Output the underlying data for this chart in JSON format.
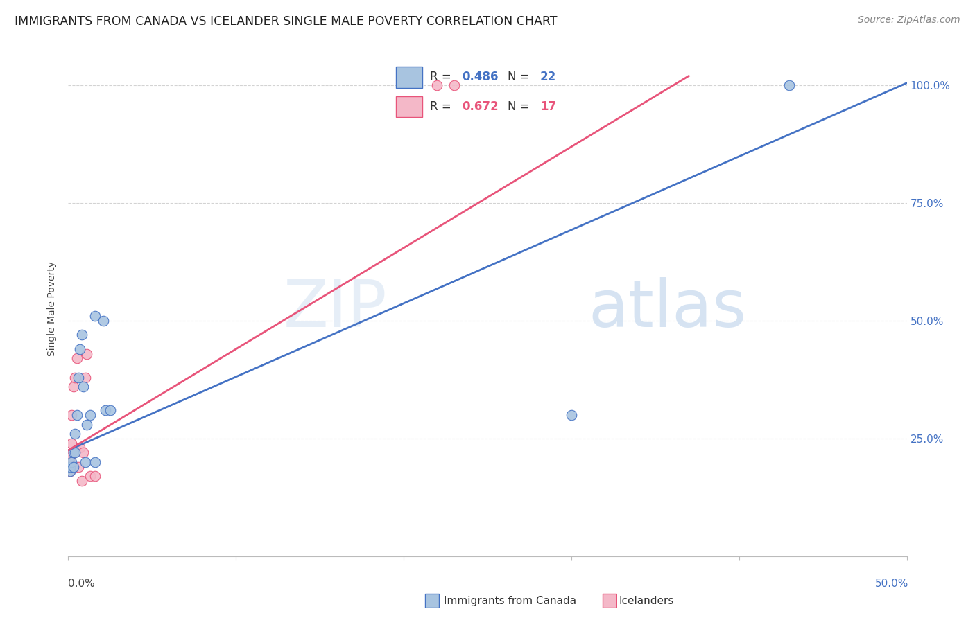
{
  "title": "IMMIGRANTS FROM CANADA VS ICELANDER SINGLE MALE POVERTY CORRELATION CHART",
  "source": "Source: ZipAtlas.com",
  "ylabel": "Single Male Poverty",
  "xlim": [
    0.0,
    0.5
  ],
  "ylim": [
    0.0,
    1.05
  ],
  "canada_R": "0.486",
  "canada_N": "22",
  "iceland_R": "0.672",
  "iceland_N": "17",
  "canada_color": "#a8c4e0",
  "canada_line_color": "#4472c4",
  "iceland_color": "#f4b8c8",
  "iceland_line_color": "#e8547a",
  "watermark_zip": "ZIP",
  "watermark_atlas": "atlas",
  "background_color": "#ffffff",
  "grid_color": "#d3d3d3",
  "canada_x": [
    0.001,
    0.001,
    0.002,
    0.003,
    0.003,
    0.004,
    0.004,
    0.005,
    0.006,
    0.007,
    0.008,
    0.009,
    0.01,
    0.011,
    0.013,
    0.016,
    0.016,
    0.021,
    0.022,
    0.025,
    0.3,
    0.43
  ],
  "canada_y": [
    0.18,
    0.19,
    0.2,
    0.19,
    0.22,
    0.22,
    0.26,
    0.3,
    0.38,
    0.44,
    0.47,
    0.36,
    0.2,
    0.28,
    0.3,
    0.2,
    0.51,
    0.5,
    0.31,
    0.31,
    0.3,
    1.0
  ],
  "iceland_x": [
    0.001,
    0.001,
    0.002,
    0.002,
    0.003,
    0.004,
    0.005,
    0.006,
    0.007,
    0.008,
    0.009,
    0.01,
    0.011,
    0.013,
    0.016,
    0.22,
    0.23
  ],
  "iceland_y": [
    0.18,
    0.21,
    0.24,
    0.3,
    0.36,
    0.38,
    0.42,
    0.19,
    0.23,
    0.16,
    0.22,
    0.38,
    0.43,
    0.17,
    0.17,
    1.0,
    1.0
  ],
  "canada_trend_x": [
    0.0,
    0.5
  ],
  "canada_trend_y": [
    0.225,
    1.005
  ],
  "iceland_trend_x": [
    0.0,
    0.37
  ],
  "iceland_trend_y": [
    0.225,
    1.02
  ],
  "ytick_vals": [
    0.0,
    0.25,
    0.5,
    0.75,
    1.0
  ],
  "ytick_labels_right": [
    "",
    "25.0%",
    "50.0%",
    "75.0%",
    "100.0%"
  ],
  "xtick_vals": [
    0.0,
    0.1,
    0.2,
    0.3,
    0.4,
    0.5
  ]
}
